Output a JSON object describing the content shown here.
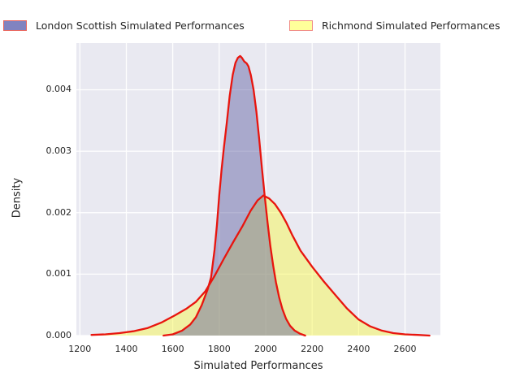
{
  "colors": {
    "figure_bg": "#ffffff",
    "plot_bg": "#e9e9f1",
    "grid": "#ffffff",
    "text": "#262626",
    "line_red": "#e8150e"
  },
  "legend": {
    "entries": [
      {
        "label": "London Scottish Simulated Performances",
        "swatch_fill": "#8183c0",
        "swatch_border": "#e8655e"
      },
      {
        "label": "Richmond Simulated Performances",
        "swatch_fill": "#ffff9a",
        "swatch_border": "#f08c84"
      }
    ]
  },
  "chart_data": {
    "type": "area",
    "subtype": "kde-density",
    "title": "",
    "xlabel": "Simulated Performances",
    "ylabel": "Density",
    "grid": true,
    "legend_position": "top",
    "xlim": [
      1185,
      2752
    ],
    "ylim": [
      0,
      0.00476
    ],
    "x_ticks": [
      {
        "value": 1200,
        "label": "1200"
      },
      {
        "value": 1400,
        "label": "1400"
      },
      {
        "value": 1600,
        "label": "1600"
      },
      {
        "value": 1800,
        "label": "1800"
      },
      {
        "value": 2000,
        "label": "2000"
      },
      {
        "value": 2200,
        "label": "2200"
      },
      {
        "value": 2400,
        "label": "2400"
      },
      {
        "value": 2600,
        "label": "2600"
      }
    ],
    "y_ticks": [
      {
        "value": 0.0,
        "label": "0.000"
      },
      {
        "value": 0.001,
        "label": "0.001"
      },
      {
        "value": 0.002,
        "label": "0.002"
      },
      {
        "value": 0.003,
        "label": "0.003"
      },
      {
        "value": 0.004,
        "label": "0.004"
      }
    ],
    "series": [
      {
        "name": "London Scottish Simulated Performances",
        "line_color": "#e8150e",
        "fill_color": "rgba(90,90,160,0.45)",
        "peak": {
          "x": 1890,
          "density": 0.00455
        },
        "x": [
          1560,
          1600,
          1640,
          1675,
          1700,
          1725,
          1750,
          1765,
          1780,
          1790,
          1800,
          1810,
          1820,
          1832,
          1845,
          1858,
          1870,
          1880,
          1890,
          1898,
          1908,
          1918,
          1926,
          1936,
          1948,
          1960,
          1972,
          1984,
          1996,
          2008,
          2020,
          2032,
          2044,
          2058,
          2072,
          2088,
          2105,
          2125,
          2148,
          2170
        ],
        "density": [
          0,
          2e-05,
          8e-05,
          0.00018,
          0.0003,
          0.0005,
          0.00075,
          0.00095,
          0.0014,
          0.0018,
          0.00228,
          0.0027,
          0.00305,
          0.00345,
          0.0039,
          0.00424,
          0.00444,
          0.00452,
          0.00455,
          0.00452,
          0.00446,
          0.00443,
          0.00438,
          0.00424,
          0.004,
          0.00364,
          0.0032,
          0.00272,
          0.00226,
          0.00184,
          0.00146,
          0.00114,
          0.00087,
          0.00062,
          0.00043,
          0.00027,
          0.00016,
          8e-05,
          3e-05,
          0
        ]
      },
      {
        "name": "Richmond Simulated Performances",
        "line_color": "#e8150e",
        "fill_color": "rgba(247,247,90,0.52)",
        "peak": {
          "x": 1990,
          "density": 0.00228
        },
        "x": [
          1250,
          1310,
          1370,
          1430,
          1490,
          1550,
          1610,
          1660,
          1700,
          1740,
          1780,
          1820,
          1860,
          1900,
          1935,
          1965,
          1990,
          2015,
          2040,
          2065,
          2090,
          2115,
          2150,
          2200,
          2250,
          2300,
          2350,
          2400,
          2450,
          2500,
          2550,
          2600,
          2655,
          2705
        ],
        "density": [
          1e-05,
          2e-05,
          4e-05,
          7e-05,
          0.00012,
          0.00021,
          0.00033,
          0.00044,
          0.00055,
          0.00072,
          0.00097,
          0.00125,
          0.00152,
          0.00178,
          0.00203,
          0.0022,
          0.00228,
          0.00223,
          0.00214,
          0.002,
          0.00183,
          0.00163,
          0.00138,
          0.00112,
          0.00088,
          0.00066,
          0.00044,
          0.00026,
          0.00015,
          8e-05,
          4e-05,
          2e-05,
          1e-05,
          0
        ]
      }
    ]
  }
}
